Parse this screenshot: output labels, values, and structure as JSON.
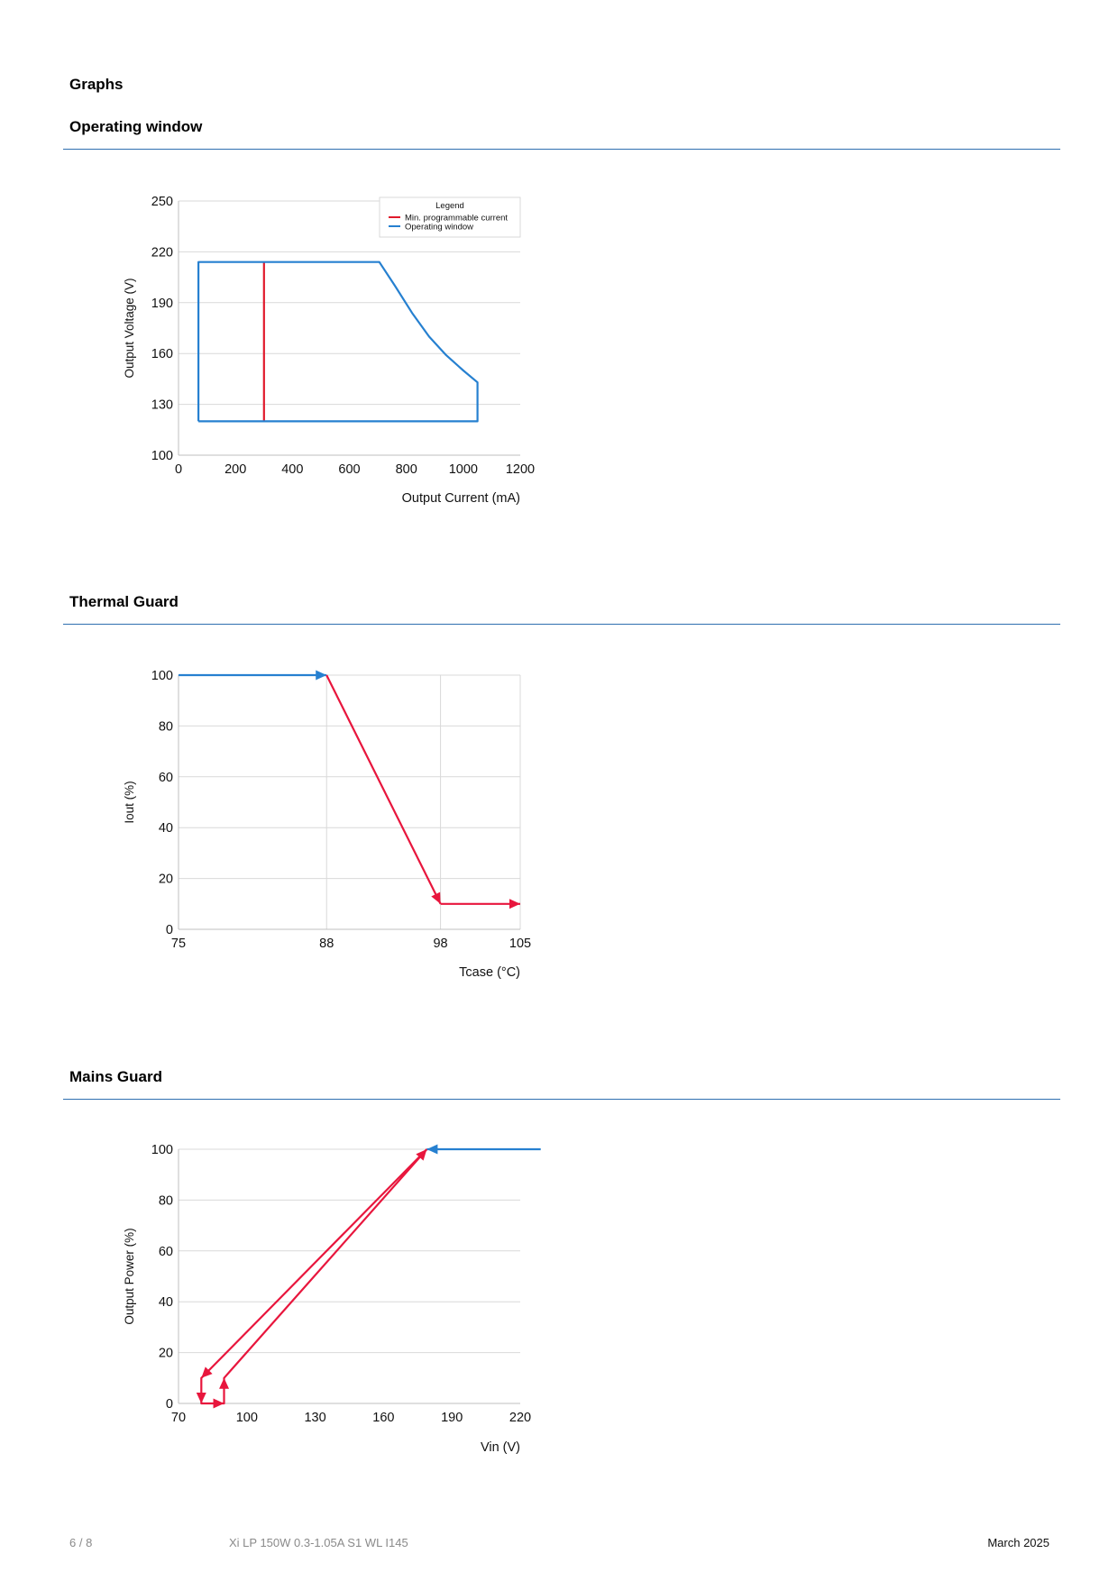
{
  "page_heading": "Graphs",
  "sections": [
    {
      "title": "Operating window"
    },
    {
      "title": "Thermal Guard"
    },
    {
      "title": "Mains Guard"
    }
  ],
  "chart_data": [
    {
      "type": "line",
      "xlabel": "Output Current (mA)",
      "ylabel": "Output Voltage (V)",
      "xlim": [
        0,
        1200
      ],
      "ylim": [
        100,
        250
      ],
      "xticks": [
        0,
        200,
        400,
        600,
        800,
        1000,
        1200
      ],
      "yticks": [
        100,
        130,
        160,
        190,
        220,
        250
      ],
      "grid": "horizontal",
      "legend": {
        "title": "Legend",
        "placement": "top-right"
      },
      "series": [
        {
          "name": "Min. programmable current",
          "color": "#e0192b",
          "points": [
            [
              300,
              120
            ],
            [
              300,
              214
            ]
          ]
        },
        {
          "name": "Operating window",
          "color": "#2680d0",
          "points": [
            [
              70,
              120
            ],
            [
              70,
              214
            ],
            [
              705,
              214
            ],
            [
              760,
              200
            ],
            [
              820,
              184
            ],
            [
              880,
              170
            ],
            [
              940,
              159
            ],
            [
              1000,
              150
            ],
            [
              1050,
              143
            ],
            [
              1050,
              120
            ],
            [
              70,
              120
            ]
          ]
        }
      ]
    },
    {
      "type": "line",
      "xlabel": "Tcase (°C)",
      "ylabel": "Iout (%)",
      "xlim": [
        75,
        105
      ],
      "ylim": [
        0,
        100
      ],
      "xticks": [
        75,
        88,
        98,
        105
      ],
      "yticks": [
        0,
        20,
        40,
        60,
        80,
        100
      ],
      "grid": "both",
      "series": [
        {
          "color": "#2680d0",
          "points": [
            [
              75,
              100
            ],
            [
              88,
              100
            ]
          ]
        },
        {
          "color": "#e8163d",
          "points": [
            [
              88,
              100
            ],
            [
              98,
              10
            ]
          ]
        },
        {
          "color": "#e8163d",
          "points": [
            [
              98,
              10
            ],
            [
              105,
              10
            ]
          ]
        }
      ]
    },
    {
      "type": "line",
      "xlabel": "Vin (V)",
      "ylabel": "Output Power (%)",
      "xlim": [
        70,
        220
      ],
      "ylim": [
        0,
        100
      ],
      "xticks": [
        70,
        100,
        130,
        160,
        190,
        220
      ],
      "yticks": [
        0,
        20,
        40,
        60,
        80,
        100
      ],
      "grid": "horizontal",
      "series": [
        {
          "color": "#2680d0",
          "points": [
            [
              179,
              100
            ],
            [
              229,
              100
            ]
          ]
        },
        {
          "color": "#e8163d",
          "points": [
            [
              179,
              100
            ],
            [
              80,
              10
            ],
            [
              80,
              0
            ],
            [
              90,
              0
            ],
            [
              90,
              10
            ],
            [
              179,
              100
            ]
          ]
        }
      ]
    }
  ],
  "footer": {
    "page_number": "6 / 8",
    "product": "Xi LP 150W 0.3-1.05A S1 WL I145",
    "date": "March 2025"
  }
}
